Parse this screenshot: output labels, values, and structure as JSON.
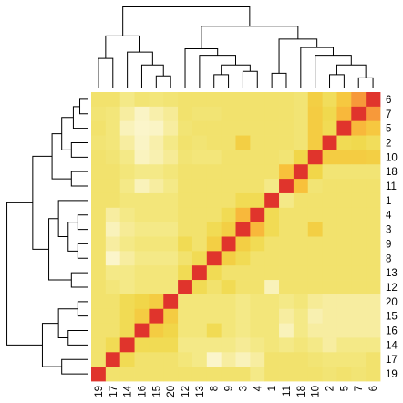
{
  "chart_data": {
    "type": "heatmap",
    "title": "",
    "xlabel": "",
    "ylabel": "",
    "column_labels": [
      "19",
      "17",
      "14",
      "16",
      "15",
      "20",
      "12",
      "13",
      "8",
      "9",
      "3",
      "4",
      "1",
      "11",
      "18",
      "10",
      "2",
      "5",
      "7",
      "6"
    ],
    "row_labels": [
      "6",
      "7",
      "5",
      "2",
      "10",
      "18",
      "11",
      "1",
      "4",
      "3",
      "9",
      "8",
      "13",
      "12",
      "20",
      "15",
      "16",
      "14",
      "17",
      "19"
    ],
    "color_scale": [
      "#fcf7d4",
      "#f3e77e",
      "#f0d84a",
      "#f8c13b",
      "#f8a33a",
      "#f1723b",
      "#e0342c"
    ],
    "value_range": [
      0,
      1
    ],
    "values": [
      [
        0.22,
        0.22,
        0.15,
        0.2,
        0.18,
        0.2,
        0.22,
        0.22,
        0.22,
        0.22,
        0.22,
        0.22,
        0.22,
        0.22,
        0.2,
        0.4,
        0.28,
        0.45,
        0.7,
        1.0
      ],
      [
        0.2,
        0.18,
        0.1,
        0.03,
        0.08,
        0.12,
        0.22,
        0.2,
        0.2,
        0.22,
        0.22,
        0.22,
        0.22,
        0.22,
        0.2,
        0.42,
        0.32,
        0.55,
        1.0,
        0.7
      ],
      [
        0.22,
        0.18,
        0.05,
        0.02,
        0.03,
        0.1,
        0.2,
        0.22,
        0.22,
        0.22,
        0.22,
        0.22,
        0.22,
        0.22,
        0.2,
        0.42,
        0.3,
        1.0,
        0.55,
        0.45
      ],
      [
        0.2,
        0.18,
        0.1,
        0.03,
        0.08,
        0.15,
        0.22,
        0.2,
        0.22,
        0.22,
        0.4,
        0.22,
        0.22,
        0.22,
        0.2,
        0.42,
        1.0,
        0.3,
        0.32,
        0.28
      ],
      [
        0.22,
        0.2,
        0.15,
        0.04,
        0.07,
        0.12,
        0.2,
        0.18,
        0.18,
        0.22,
        0.22,
        0.22,
        0.22,
        0.2,
        0.35,
        1.0,
        0.42,
        0.42,
        0.42,
        0.4
      ],
      [
        0.22,
        0.22,
        0.18,
        0.15,
        0.15,
        0.18,
        0.22,
        0.22,
        0.22,
        0.22,
        0.22,
        0.22,
        0.22,
        0.5,
        1.0,
        0.35,
        0.2,
        0.2,
        0.2,
        0.2
      ],
      [
        0.22,
        0.22,
        0.15,
        0.05,
        0.1,
        0.15,
        0.22,
        0.22,
        0.22,
        0.22,
        0.22,
        0.22,
        0.15,
        1.0,
        0.5,
        0.2,
        0.22,
        0.22,
        0.22,
        0.22
      ],
      [
        0.22,
        0.22,
        0.18,
        0.18,
        0.18,
        0.18,
        0.22,
        0.22,
        0.22,
        0.22,
        0.3,
        0.3,
        1.0,
        0.15,
        0.22,
        0.22,
        0.22,
        0.22,
        0.22,
        0.22
      ],
      [
        0.22,
        0.1,
        0.15,
        0.18,
        0.18,
        0.18,
        0.22,
        0.22,
        0.22,
        0.3,
        0.55,
        1.0,
        0.3,
        0.22,
        0.22,
        0.22,
        0.22,
        0.22,
        0.22,
        0.22
      ],
      [
        0.22,
        0.05,
        0.12,
        0.15,
        0.15,
        0.15,
        0.22,
        0.22,
        0.3,
        0.4,
        1.0,
        0.55,
        0.3,
        0.22,
        0.22,
        0.4,
        0.22,
        0.22,
        0.22,
        0.22
      ],
      [
        0.22,
        0.1,
        0.15,
        0.18,
        0.18,
        0.18,
        0.3,
        0.22,
        0.4,
        1.0,
        0.4,
        0.3,
        0.22,
        0.22,
        0.22,
        0.22,
        0.22,
        0.22,
        0.22,
        0.22
      ],
      [
        0.22,
        0.02,
        0.1,
        0.15,
        0.15,
        0.15,
        0.22,
        0.3,
        1.0,
        0.4,
        0.3,
        0.22,
        0.22,
        0.22,
        0.22,
        0.22,
        0.22,
        0.22,
        0.22,
        0.22
      ],
      [
        0.22,
        0.15,
        0.15,
        0.18,
        0.18,
        0.18,
        0.3,
        1.0,
        0.3,
        0.22,
        0.22,
        0.22,
        0.22,
        0.22,
        0.22,
        0.22,
        0.22,
        0.22,
        0.22,
        0.22
      ],
      [
        0.22,
        0.18,
        0.15,
        0.18,
        0.18,
        0.18,
        1.0,
        0.3,
        0.22,
        0.3,
        0.22,
        0.22,
        0.05,
        0.22,
        0.22,
        0.22,
        0.22,
        0.22,
        0.22,
        0.22
      ],
      [
        0.22,
        0.22,
        0.3,
        0.35,
        0.42,
        1.0,
        0.18,
        0.18,
        0.18,
        0.18,
        0.15,
        0.18,
        0.18,
        0.15,
        0.18,
        0.12,
        0.1,
        0.1,
        0.1,
        0.1
      ],
      [
        0.22,
        0.22,
        0.3,
        0.42,
        1.0,
        0.42,
        0.18,
        0.18,
        0.18,
        0.18,
        0.15,
        0.18,
        0.18,
        0.1,
        0.15,
        0.07,
        0.1,
        0.1,
        0.1,
        0.1
      ],
      [
        0.22,
        0.22,
        0.3,
        1.0,
        0.42,
        0.35,
        0.18,
        0.18,
        0.3,
        0.18,
        0.15,
        0.18,
        0.18,
        0.05,
        0.15,
        0.1,
        0.1,
        0.1,
        0.1,
        0.1
      ],
      [
        0.22,
        0.3,
        1.0,
        0.3,
        0.3,
        0.3,
        0.15,
        0.15,
        0.15,
        0.15,
        0.12,
        0.15,
        0.18,
        0.15,
        0.18,
        0.15,
        0.1,
        0.15,
        0.15,
        0.15
      ],
      [
        0.22,
        1.0,
        0.3,
        0.22,
        0.22,
        0.22,
        0.18,
        0.15,
        0.02,
        0.1,
        0.05,
        0.1,
        0.22,
        0.22,
        0.22,
        0.2,
        0.18,
        0.18,
        0.18,
        0.22
      ],
      [
        1.0,
        0.22,
        0.22,
        0.22,
        0.22,
        0.22,
        0.22,
        0.22,
        0.22,
        0.22,
        0.22,
        0.15,
        0.22,
        0.22,
        0.22,
        0.22,
        0.2,
        0.22,
        0.2,
        0.22
      ]
    ],
    "column_dendrogram": [
      [
        11,
        0,
        12,
        0.1
      ],
      [
        16,
        4,
        17,
        0.2
      ],
      [
        15,
        0,
        16,
        0.17
      ],
      [
        8,
        1,
        9,
        0.2
      ],
      [
        6,
        3,
        7,
        0.2
      ],
      [
        0,
        2,
        1,
        0.55
      ],
      [
        10,
        4,
        11,
        0.45
      ],
      [
        13,
        0,
        14,
        0.3
      ],
      [
        17,
        0,
        18,
        0.8
      ],
      [
        4,
        0,
        5,
        0.7
      ],
      [
        9,
        1,
        10,
        1.2
      ],
      [
        18,
        4,
        19,
        0.8
      ],
      [
        3,
        0,
        4,
        0.7
      ],
      [
        0,
        5,
        2,
        0.55
      ],
      [
        6,
        3,
        7,
        1.2
      ]
    ],
    "row_dendrogram": [
      [
        0,
        1,
        1,
        0.15
      ],
      [
        2,
        3,
        3,
        0.1
      ],
      [
        4,
        5,
        5,
        0.2
      ],
      [
        6,
        7,
        7,
        0.45
      ],
      [
        8,
        9,
        9,
        0.3
      ],
      [
        10,
        11,
        11,
        0.25
      ]
    ]
  }
}
